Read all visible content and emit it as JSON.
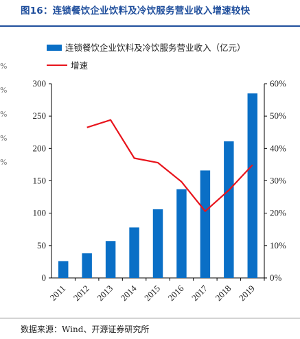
{
  "header": {
    "title": "图16：连锁餐饮企业饮料及冷饮服务营业收入增速较快"
  },
  "source": {
    "text": "数据来源：Wind、开源证券研究所"
  },
  "edge_marks": [
    "%",
    "%",
    "%",
    "%",
    "%"
  ],
  "colors": {
    "bar": "#0a6fc6",
    "line": "#e8141c",
    "title": "#1f4e9c"
  },
  "chart_data": {
    "type": "bar",
    "categories": [
      "2011",
      "2012",
      "2013",
      "2014",
      "2015",
      "2016",
      "2017",
      "2018",
      "2019"
    ],
    "series": [
      {
        "name": "连锁餐饮企业饮料及冷饮服务营业收入（亿元）",
        "type": "bar",
        "axis": "left",
        "values": [
          26,
          38,
          57,
          78,
          106,
          137,
          166,
          211,
          285
        ]
      },
      {
        "name": "增速",
        "type": "line",
        "axis": "right",
        "values": [
          null,
          0.465,
          0.488,
          0.37,
          0.356,
          0.297,
          0.206,
          0.271,
          0.349
        ]
      }
    ],
    "y_left": {
      "min": 0,
      "max": 300,
      "ticks": [
        0,
        50,
        100,
        150,
        200,
        250,
        300
      ]
    },
    "y_right": {
      "min": 0,
      "max": 0.6,
      "ticks": [
        "0%",
        "10%",
        "20%",
        "30%",
        "40%",
        "50%",
        "60%"
      ]
    },
    "legend": {
      "position": "top-left"
    },
    "grid": false
  }
}
